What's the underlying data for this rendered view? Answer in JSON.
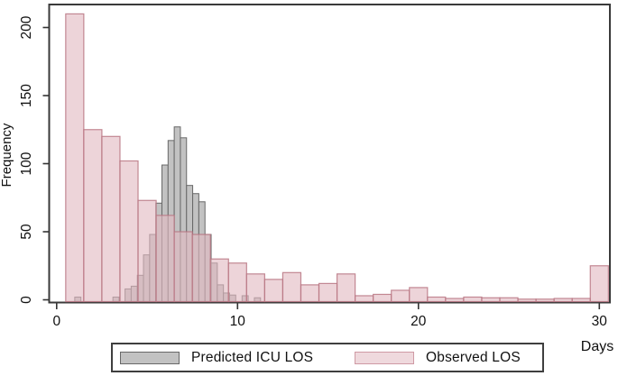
{
  "chart_data": {
    "type": "bar",
    "subtype": "overlaid-histogram",
    "title": "",
    "xlabel": "Days",
    "ylabel": "Frequency",
    "xlim": [
      -0.45,
      30.6
    ],
    "ylim": [
      0,
      215
    ],
    "x_ticks": [
      0,
      10,
      20,
      30
    ],
    "y_ticks": [
      0,
      50,
      100,
      150,
      200
    ],
    "grid": false,
    "legend_position": "bottom-center-boxed",
    "series": [
      {
        "name": "Predicted ICU LOS",
        "bin_width_days": 0.34,
        "fill": "#c2c2c2",
        "stroke": "#686868",
        "legend_fill": "#c2c2c2",
        "legend_stroke": "#686868",
        "bars": [
          [
            1.17,
            2
          ],
          [
            3.28,
            2
          ],
          [
            3.95,
            8
          ],
          [
            4.29,
            10
          ],
          [
            4.63,
            18
          ],
          [
            4.97,
            33
          ],
          [
            5.31,
            48
          ],
          [
            5.65,
            71
          ],
          [
            5.99,
            99
          ],
          [
            6.33,
            117
          ],
          [
            6.67,
            127
          ],
          [
            7.01,
            119
          ],
          [
            7.35,
            84
          ],
          [
            7.69,
            78
          ],
          [
            8.03,
            72
          ],
          [
            8.37,
            48
          ],
          [
            8.71,
            27
          ],
          [
            9.05,
            11
          ],
          [
            9.39,
            5
          ],
          [
            9.73,
            3.5
          ],
          [
            10.42,
            3
          ],
          [
            11.1,
            1.5
          ]
        ]
      },
      {
        "name": "Observed LOS",
        "bin_width_days": 1,
        "fill": "rgba(226,186,193,0.62)",
        "stroke": "rgba(184,118,130,0.85)",
        "legend_fill": "#efd9dd",
        "legend_stroke": "#cf9aa4",
        "bars": [
          [
            1,
            210
          ],
          [
            2,
            125
          ],
          [
            3,
            120
          ],
          [
            4,
            102
          ],
          [
            5,
            73
          ],
          [
            6,
            62
          ],
          [
            7,
            50
          ],
          [
            8,
            48
          ],
          [
            9,
            30
          ],
          [
            10,
            27
          ],
          [
            11,
            19
          ],
          [
            12,
            15
          ],
          [
            13,
            20
          ],
          [
            14,
            11
          ],
          [
            15,
            12
          ],
          [
            16,
            19
          ],
          [
            17,
            3
          ],
          [
            18,
            4
          ],
          [
            19,
            7
          ],
          [
            20,
            9
          ],
          [
            21,
            2
          ],
          [
            22,
            1
          ],
          [
            23,
            2
          ],
          [
            24,
            1.5
          ],
          [
            25,
            1.5
          ],
          [
            26,
            0.5
          ],
          [
            27,
            0.5
          ],
          [
            28,
            1
          ],
          [
            29,
            1
          ],
          [
            30,
            25
          ]
        ]
      }
    ]
  },
  "colors": {
    "plot_border": "#3a3a3a",
    "tick": "#333333",
    "tick_text": "#111111",
    "background": "#ffffff"
  }
}
